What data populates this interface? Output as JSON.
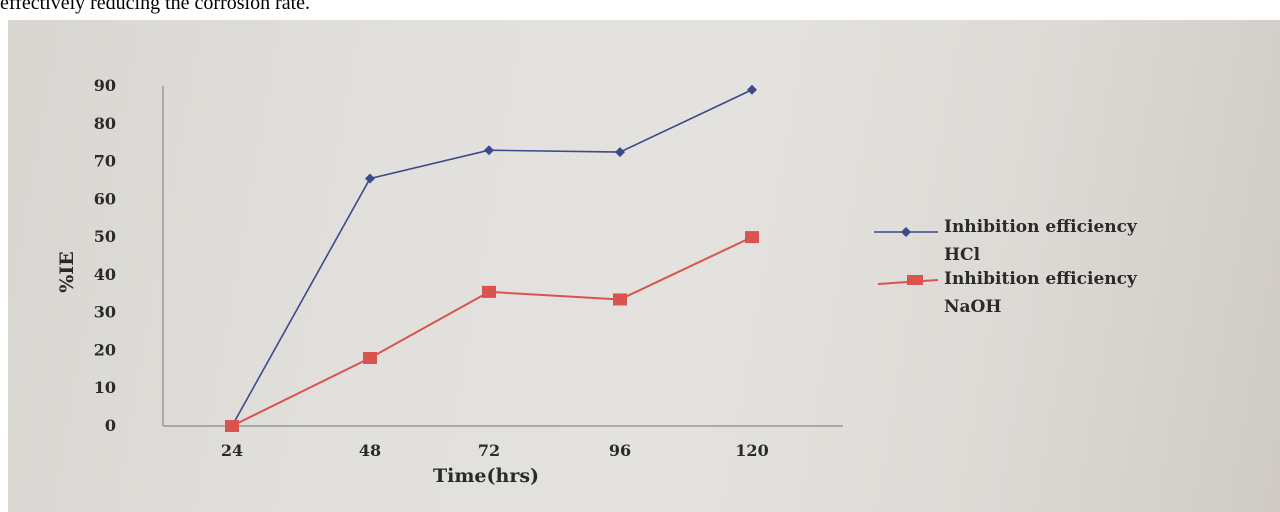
{
  "page_text": "effectively reducing the corrosion rate.",
  "colors": {
    "hcl": "#3b4a8c",
    "naoh": "#d9534f",
    "axis": "#8a8a8a",
    "text": "#2a2a2a"
  },
  "chart_data": {
    "type": "line",
    "x": [
      "24",
      "48",
      "72",
      "96",
      "120"
    ],
    "series": [
      {
        "name": "Inhibition efficiency HCl",
        "values": [
          0,
          65.5,
          73,
          72.5,
          89
        ],
        "marker": "diamond"
      },
      {
        "name": "Inhibition efficiency NaOH",
        "values": [
          0,
          18,
          35.5,
          33.5,
          50
        ],
        "marker": "square"
      }
    ],
    "y_ticks": [
      0,
      10,
      20,
      30,
      40,
      50,
      60,
      70,
      80,
      90
    ],
    "ylim": [
      0,
      90
    ],
    "xlabel": "Time(hrs)",
    "ylabel": "%IE",
    "legend": {
      "position": "right",
      "entries": [
        {
          "line1": "Inhibition efficiency",
          "line2": "HCl"
        },
        {
          "line1": "Inhibition efficiency",
          "line2": "NaOH"
        }
      ]
    },
    "grid": false
  }
}
